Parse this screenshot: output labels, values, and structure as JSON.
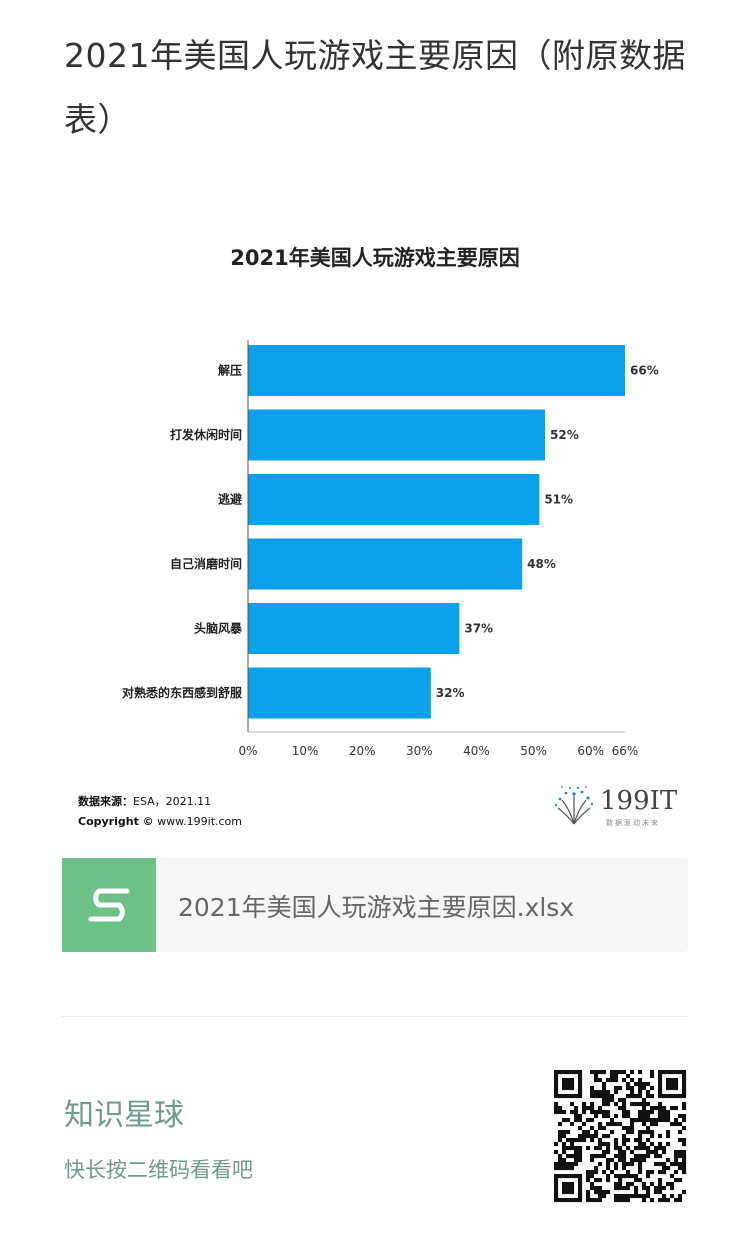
{
  "article": {
    "title": "2021年美国人玩游戏主要原因（附原数据表）"
  },
  "chart_data": {
    "type": "bar",
    "orientation": "horizontal",
    "title": "2021年美国人玩游戏主要原因",
    "categories": [
      "解压",
      "打发休闲时间",
      "逃避",
      "自己消磨时间",
      "头脑风暴",
      "对熟悉的东西感到舒服"
    ],
    "values": [
      66,
      52,
      51,
      48,
      37,
      32
    ],
    "value_labels": [
      "66%",
      "52%",
      "51%",
      "48%",
      "37%",
      "32%"
    ],
    "xlim": [
      0,
      66
    ],
    "xticks": [
      0,
      10,
      20,
      30,
      40,
      50,
      60,
      66
    ],
    "xtick_labels": [
      "0%",
      "10%",
      "20%",
      "30%",
      "40%",
      "50%",
      "60%",
      "66%"
    ],
    "bar_color": "#0aa0ea",
    "grid": false,
    "source_label": "数据来源：",
    "source_value": "ESA，2021.11",
    "copyright_label": "Copyright ©",
    "copyright_value": "www.199it.com"
  },
  "logo": {
    "text": "199IT",
    "tagline": "数据驱动未来"
  },
  "attachment": {
    "icon": "spreadsheet-s-icon",
    "icon_color": "#6cc286",
    "filename": "2021年美国人玩游戏主要原因.xlsx"
  },
  "footer": {
    "title": "知识星球",
    "hint": "快长按二维码看看吧",
    "accent": "#6e9b87"
  }
}
